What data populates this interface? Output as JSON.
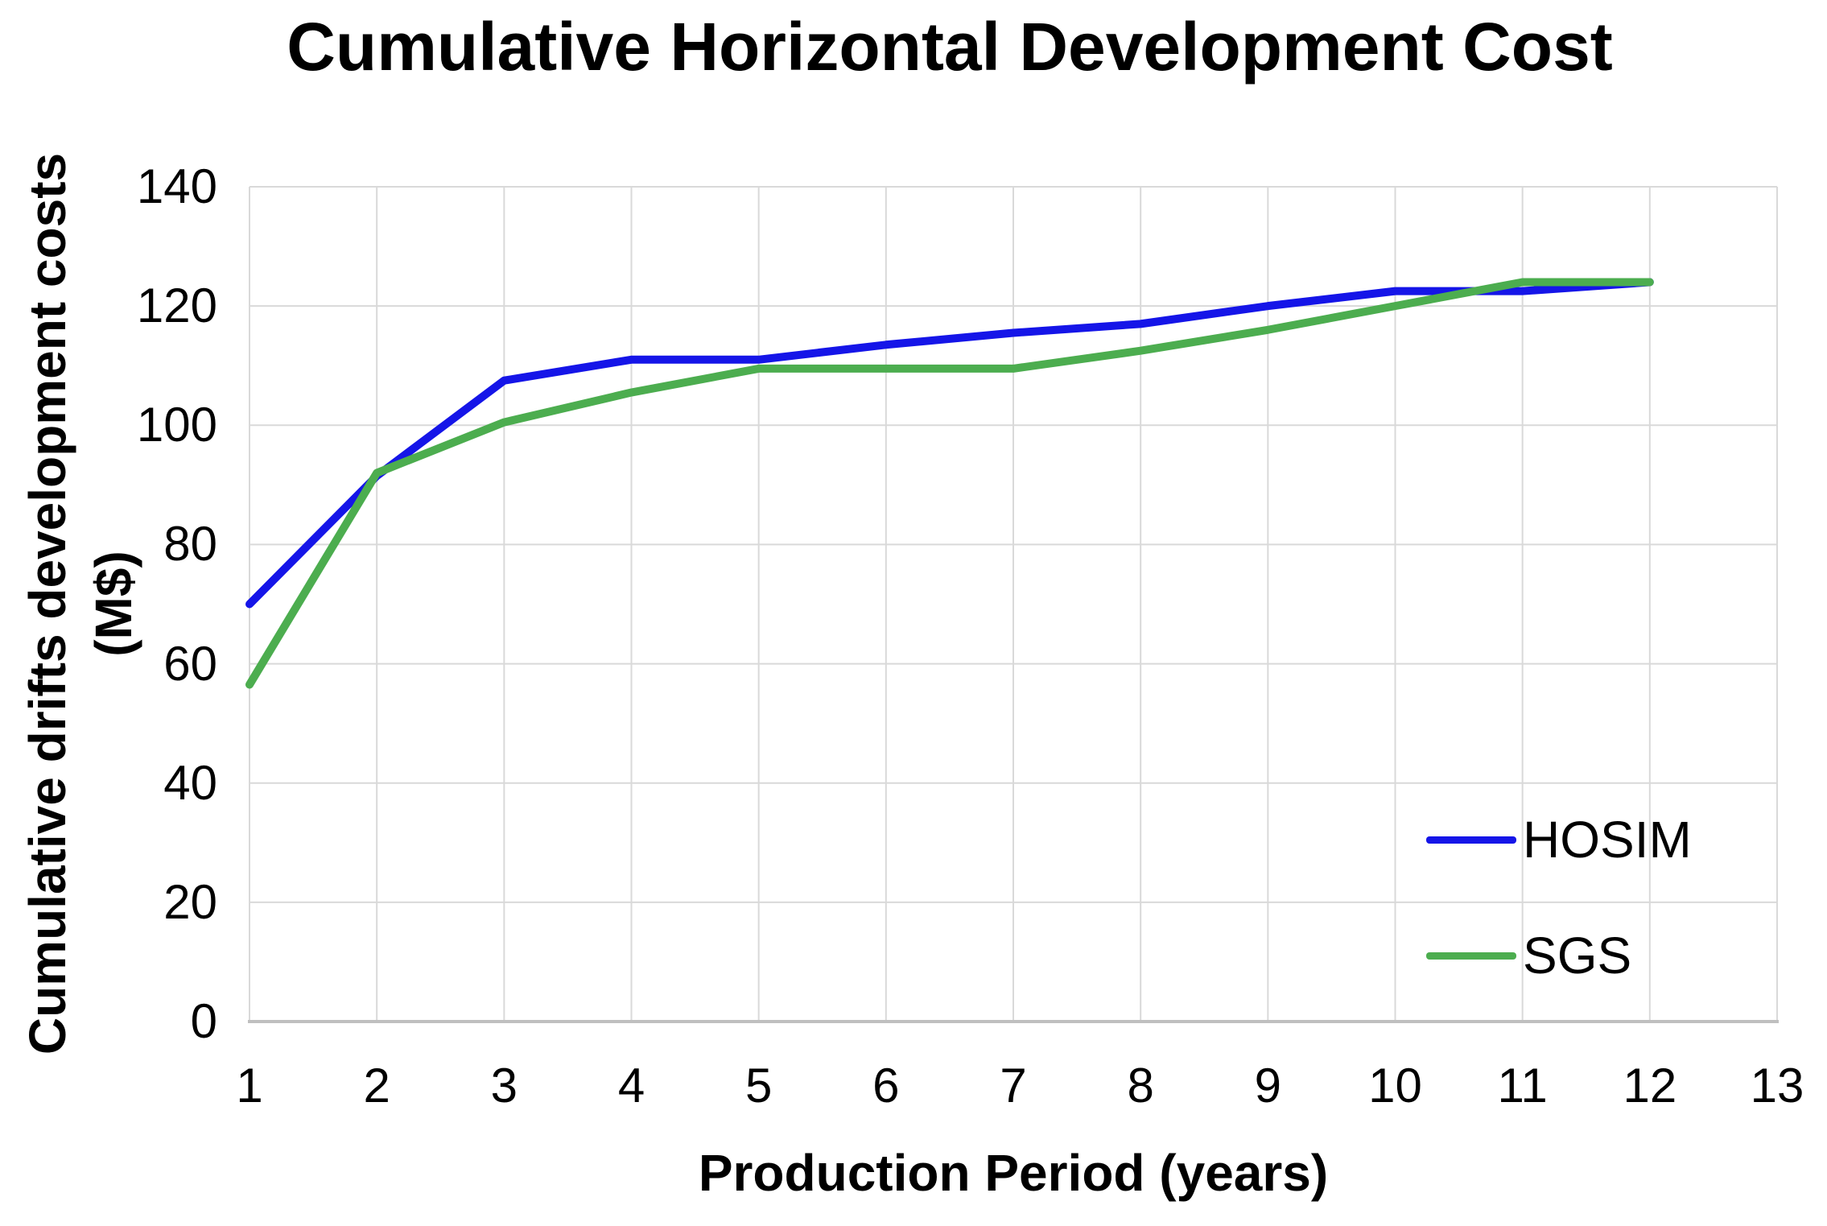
{
  "chart_data": {
    "type": "line",
    "title": "Cumulative Horizontal Development Cost",
    "xlabel": "Production Period (years)",
    "ylabel_line1": "Cumulative drifts development costs",
    "ylabel_line2": "(M$)",
    "x": [
      1,
      2,
      3,
      4,
      5,
      6,
      7,
      8,
      9,
      10,
      11,
      12
    ],
    "series": [
      {
        "name": "HOSIM",
        "color": "#1515E8",
        "values": [
          70,
          91.5,
          107.5,
          111,
          111,
          113.5,
          115.5,
          117,
          120,
          122.5,
          122.5,
          124
        ]
      },
      {
        "name": "SGS",
        "color": "#4CAD4F",
        "values": [
          56.5,
          92,
          100.5,
          105.5,
          109.5,
          109.5,
          109.5,
          112.5,
          116,
          120,
          124,
          124
        ]
      }
    ],
    "xlim": [
      1,
      13
    ],
    "ylim": [
      0,
      140
    ],
    "x_ticks": [
      1,
      2,
      3,
      4,
      5,
      6,
      7,
      8,
      9,
      10,
      11,
      12,
      13
    ],
    "y_ticks": [
      0,
      20,
      40,
      60,
      80,
      100,
      120,
      140
    ],
    "grid": "on",
    "legend_position": "inside-lower-right",
    "colors": {
      "gridline": "#D9D9D9",
      "axis_line": "#BFBFBF",
      "text": "#000000",
      "background": "#FFFFFF"
    }
  }
}
